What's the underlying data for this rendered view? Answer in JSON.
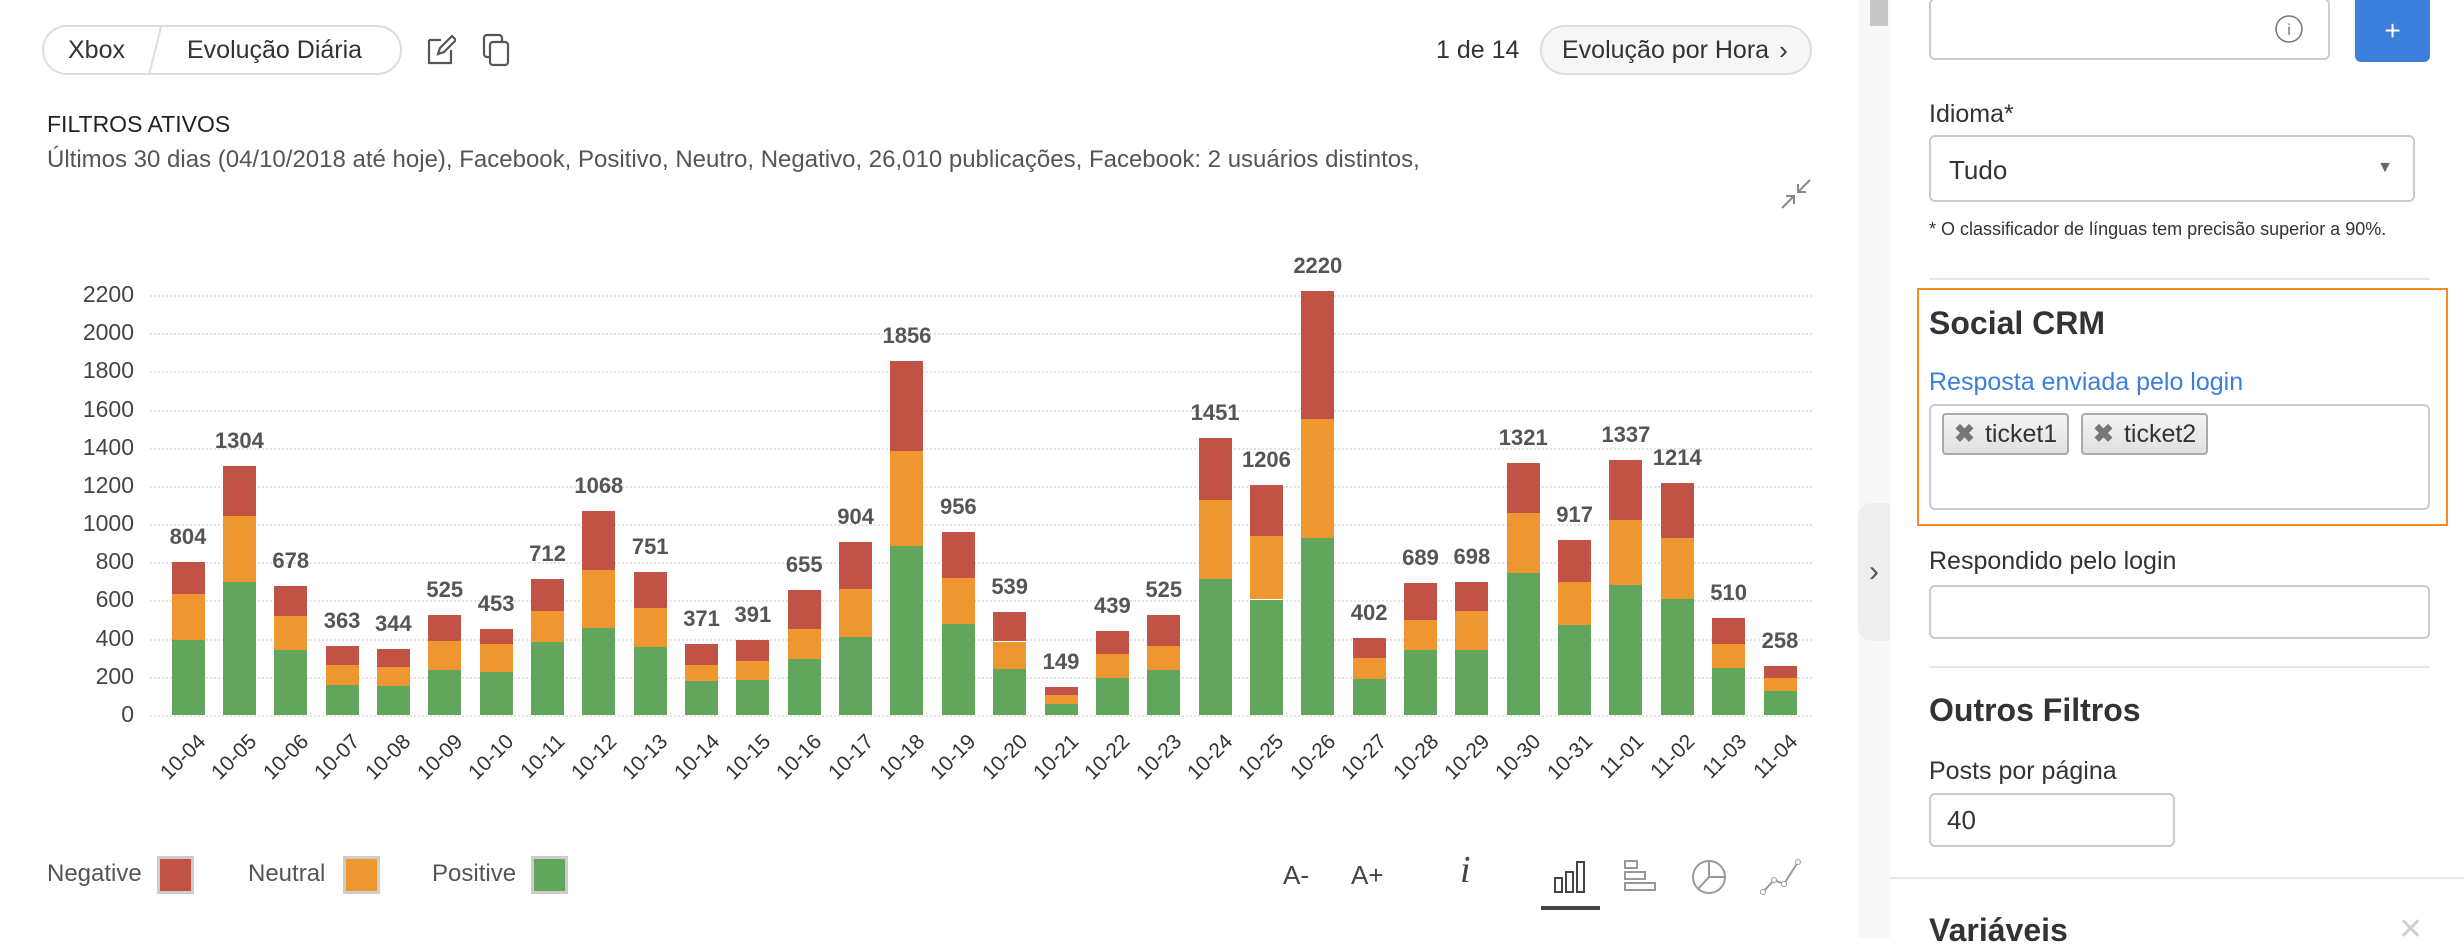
{
  "header": {
    "breadcrumb": [
      "Xbox",
      "Evolução Diária"
    ],
    "page_counter": "1 de 14",
    "next_label": "Evolução por Hora"
  },
  "filters": {
    "title": "FILTROS ATIVOS",
    "summary": "Últimos 30 dias (04/10/2018 até hoje), Facebook, Positivo, Neutro, Negativo, 26,010 publicações, Facebook: 2 usuários distintos,"
  },
  "chart_data": {
    "type": "bar",
    "stacked": true,
    "grid": true,
    "ylim": [
      0,
      2200
    ],
    "yticks": [
      0,
      200,
      400,
      600,
      800,
      1000,
      1200,
      1400,
      1600,
      1800,
      2000,
      2200
    ],
    "categories": [
      "10-04",
      "10-05",
      "10-06",
      "10-07",
      "10-08",
      "10-09",
      "10-10",
      "10-11",
      "10-12",
      "10-13",
      "10-14",
      "10-15",
      "10-16",
      "10-17",
      "10-18",
      "10-19",
      "10-20",
      "10-21",
      "10-22",
      "10-23",
      "10-24",
      "10-25",
      "10-26",
      "10-27",
      "10-28",
      "10-29",
      "10-30",
      "10-31",
      "11-01",
      "11-02",
      "11-03",
      "11-04"
    ],
    "totals": [
      804,
      1304,
      678,
      363,
      344,
      525,
      453,
      712,
      1068,
      751,
      371,
      391,
      655,
      904,
      1856,
      956,
      539,
      149,
      439,
      525,
      1451,
      1206,
      2220,
      402,
      689,
      698,
      1321,
      917,
      1337,
      1214,
      510,
      258
    ],
    "series": [
      {
        "name": "Positive",
        "color": "#62a55c",
        "values": [
          392,
          696,
          338,
          155,
          150,
          234,
          225,
          380,
          458,
          354,
          176,
          181,
          291,
          406,
          887,
          479,
          239,
          56,
          192,
          234,
          710,
          605,
          929,
          187,
          338,
          338,
          746,
          469,
          683,
          610,
          244,
          124
        ]
      },
      {
        "name": "Neutral",
        "color": "#ee962f",
        "values": [
          244,
          348,
          183,
          105,
          99,
          156,
          145,
          167,
          299,
          204,
          84,
          100,
          157,
          256,
          497,
          241,
          146,
          47,
          125,
          125,
          418,
          335,
          623,
          109,
          162,
          209,
          314,
          230,
          340,
          319,
          126,
          68
        ]
      },
      {
        "name": "Negative",
        "color": "#c05346",
        "values": [
          168,
          260,
          157,
          103,
          95,
          135,
          83,
          165,
          311,
          193,
          111,
          110,
          207,
          242,
          472,
          236,
          154,
          46,
          122,
          166,
          323,
          266,
          668,
          106,
          189,
          151,
          261,
          218,
          314,
          285,
          140,
          66
        ]
      }
    ],
    "legend": [
      "Negative",
      "Neutral",
      "Positive"
    ],
    "legend_placement": "bottom-left"
  },
  "toolbar": {
    "font_smaller": "A-",
    "font_larger": "A+",
    "icons": [
      "info-icon",
      "bar-chart-icon",
      "horizontal-bar-icon",
      "pie-chart-icon",
      "line-chart-icon"
    ],
    "active": "bar-chart-icon"
  },
  "panel": {
    "add_button": "+",
    "idioma_label": "Idioma*",
    "idioma_value": "Tudo",
    "idioma_note": "* O classificador de línguas tem precisão superior a 90%.",
    "social_crm_title": "Social CRM",
    "resposta_label": "Resposta enviada pelo login",
    "tags": [
      "ticket1",
      "ticket2"
    ],
    "respondido_label": "Respondido pelo login",
    "respondido_value": "",
    "outros_title": "Outros Filtros",
    "posts_label": "Posts por página",
    "posts_value": "40",
    "variaveis_title": "Variáveis",
    "accent": "#3a7fd9",
    "highlight": "#f68b1f"
  }
}
